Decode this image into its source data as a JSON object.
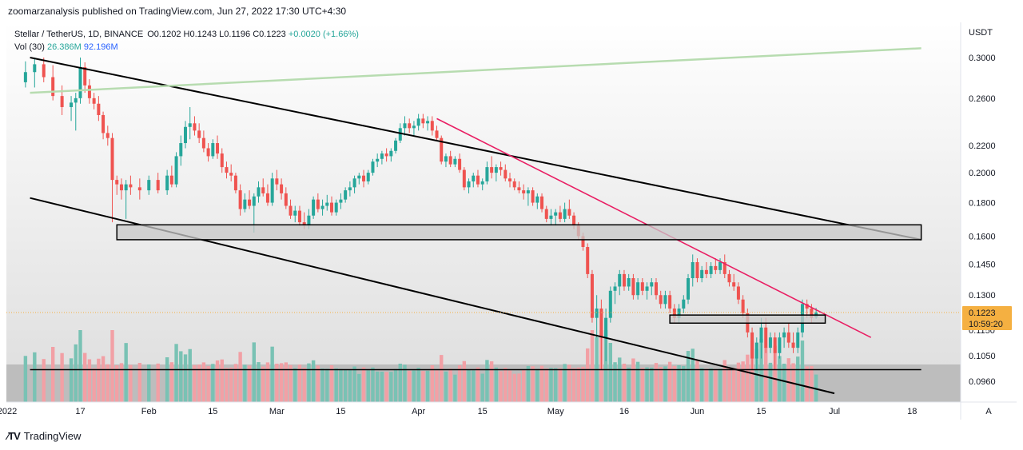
{
  "header": {
    "published": "zoomarzanalysis published on TradingView.com, Jun 27, 2022 17:30 UTC+4:30"
  },
  "legend": {
    "title": "Stellar / TetherUS, 1D, BINANCE",
    "open": "O0.1202",
    "high": "H0.1243",
    "low": "L0.1196",
    "close": "C0.1223",
    "change": "+0.0020 (+1.66%)",
    "vol_label": "Vol (30)",
    "vol_value": "26.386M",
    "vol_ma": "92.196M"
  },
  "price_axis": {
    "currency": "USDT",
    "current_price": "0.1223",
    "countdown": "10:59:20",
    "auto_label": "A"
  },
  "brand": {
    "name": "TradingView"
  },
  "colors": {
    "up": "#26a69a",
    "down": "#ef5350",
    "vol_up": "#79c2b4",
    "vol_down": "#f2a0a5",
    "trend_black": "#000000",
    "trend_green": "#b7dcb0",
    "trend_red": "#e91e63",
    "zone_fill": "#c8c8c8",
    "price_label": "#f5b041",
    "vol_ma": "#2962ff"
  },
  "chart_data": {
    "type": "candlestick",
    "symbol": "Stellar / TetherUS",
    "interval": "1D",
    "exchange": "BINANCE",
    "scale": "log",
    "y_ticks": [
      0.3,
      0.26,
      0.22,
      0.2,
      0.18,
      0.16,
      0.145,
      0.13,
      0.115,
      0.105,
      0.096
    ],
    "y_tick_labels": [
      "0.3000",
      "0.2600",
      "0.2200",
      "0.2000",
      "0.1800",
      "0.1600",
      "0.1450",
      "0.1300",
      "0.1150",
      "0.1050",
      "0.0960"
    ],
    "x_ticks": [
      "2022",
      "17",
      "Feb",
      "15",
      "Mar",
      "15",
      "Apr",
      "15",
      "May",
      "16",
      "Jun",
      "15",
      "Jul",
      "18"
    ],
    "candles": [
      [
        "2022-01-05",
        0.275,
        0.296,
        0.27,
        0.285
      ],
      [
        "2022-01-07",
        0.285,
        0.3,
        0.27,
        0.293
      ],
      [
        "2022-01-09",
        0.293,
        0.3,
        0.275,
        0.28
      ],
      [
        "2022-01-11",
        0.28,
        0.292,
        0.258,
        0.262
      ],
      [
        "2022-01-13",
        0.262,
        0.272,
        0.245,
        0.252
      ],
      [
        "2022-01-15",
        0.252,
        0.262,
        0.24,
        0.256
      ],
      [
        "2022-01-16",
        0.256,
        0.265,
        0.232,
        0.26
      ],
      [
        "2022-01-17",
        0.26,
        0.3,
        0.255,
        0.29
      ],
      [
        "2022-01-18",
        0.29,
        0.295,
        0.265,
        0.272
      ],
      [
        "2022-01-19",
        0.272,
        0.278,
        0.255,
        0.26
      ],
      [
        "2022-01-20",
        0.26,
        0.265,
        0.25,
        0.255
      ],
      [
        "2022-01-21",
        0.255,
        0.262,
        0.24,
        0.245
      ],
      [
        "2022-01-22",
        0.245,
        0.248,
        0.225,
        0.23
      ],
      [
        "2022-01-23",
        0.23,
        0.236,
        0.22,
        0.226
      ],
      [
        "2022-01-24",
        0.226,
        0.23,
        0.168,
        0.195
      ],
      [
        "2022-01-25",
        0.195,
        0.198,
        0.185,
        0.192
      ],
      [
        "2022-01-26",
        0.192,
        0.196,
        0.182,
        0.188
      ],
      [
        "2022-01-27",
        0.188,
        0.195,
        0.17,
        0.192
      ],
      [
        "2022-01-28",
        0.192,
        0.198,
        0.185,
        0.19
      ],
      [
        "2022-01-30",
        0.19,
        0.196,
        0.182,
        0.188
      ],
      [
        "2022-02-01",
        0.188,
        0.198,
        0.185,
        0.195
      ],
      [
        "2022-02-03",
        0.195,
        0.2,
        0.186,
        0.188
      ],
      [
        "2022-02-05",
        0.188,
        0.202,
        0.185,
        0.198
      ],
      [
        "2022-02-06",
        0.198,
        0.205,
        0.19,
        0.192
      ],
      [
        "2022-02-07",
        0.192,
        0.215,
        0.19,
        0.212
      ],
      [
        "2022-02-08",
        0.212,
        0.228,
        0.205,
        0.222
      ],
      [
        "2022-02-09",
        0.222,
        0.24,
        0.218,
        0.235
      ],
      [
        "2022-02-10",
        0.235,
        0.252,
        0.225,
        0.238
      ],
      [
        "2022-02-11",
        0.238,
        0.244,
        0.228,
        0.232
      ],
      [
        "2022-02-12",
        0.232,
        0.238,
        0.222,
        0.226
      ],
      [
        "2022-02-13",
        0.226,
        0.232,
        0.215,
        0.218
      ],
      [
        "2022-02-14",
        0.218,
        0.222,
        0.208,
        0.212
      ],
      [
        "2022-02-15",
        0.212,
        0.225,
        0.21,
        0.222
      ],
      [
        "2022-02-16",
        0.222,
        0.228,
        0.21,
        0.214
      ],
      [
        "2022-02-17",
        0.214,
        0.218,
        0.2,
        0.204
      ],
      [
        "2022-02-18",
        0.204,
        0.208,
        0.196,
        0.2
      ],
      [
        "2022-02-19",
        0.2,
        0.206,
        0.194,
        0.198
      ],
      [
        "2022-02-20",
        0.198,
        0.2,
        0.186,
        0.188
      ],
      [
        "2022-02-21",
        0.188,
        0.192,
        0.172,
        0.176
      ],
      [
        "2022-02-22",
        0.176,
        0.186,
        0.174,
        0.182
      ],
      [
        "2022-02-23",
        0.182,
        0.188,
        0.176,
        0.178
      ],
      [
        "2022-02-24",
        0.178,
        0.186,
        0.162,
        0.184
      ],
      [
        "2022-02-25",
        0.184,
        0.194,
        0.18,
        0.19
      ],
      [
        "2022-02-26",
        0.19,
        0.196,
        0.184,
        0.186
      ],
      [
        "2022-02-27",
        0.186,
        0.192,
        0.178,
        0.18
      ],
      [
        "2022-02-28",
        0.18,
        0.2,
        0.178,
        0.196
      ],
      [
        "2022-03-01",
        0.196,
        0.202,
        0.188,
        0.192
      ],
      [
        "2022-03-02",
        0.192,
        0.196,
        0.182,
        0.186
      ],
      [
        "2022-03-03",
        0.186,
        0.19,
        0.176,
        0.178
      ],
      [
        "2022-03-04",
        0.178,
        0.182,
        0.17,
        0.172
      ],
      [
        "2022-03-05",
        0.172,
        0.178,
        0.168,
        0.175
      ],
      [
        "2022-03-06",
        0.175,
        0.178,
        0.166,
        0.168
      ],
      [
        "2022-03-07",
        0.168,
        0.174,
        0.164,
        0.166
      ],
      [
        "2022-03-08",
        0.166,
        0.176,
        0.164,
        0.172
      ],
      [
        "2022-03-09",
        0.172,
        0.184,
        0.17,
        0.182
      ],
      [
        "2022-03-10",
        0.182,
        0.186,
        0.174,
        0.176
      ],
      [
        "2022-03-11",
        0.176,
        0.182,
        0.172,
        0.178
      ],
      [
        "2022-03-12",
        0.178,
        0.185,
        0.175,
        0.18
      ],
      [
        "2022-03-13",
        0.18,
        0.184,
        0.172,
        0.174
      ],
      [
        "2022-03-14",
        0.174,
        0.182,
        0.172,
        0.18
      ],
      [
        "2022-03-15",
        0.18,
        0.186,
        0.176,
        0.182
      ],
      [
        "2022-03-16",
        0.182,
        0.19,
        0.18,
        0.188
      ],
      [
        "2022-03-17",
        0.188,
        0.194,
        0.184,
        0.19
      ],
      [
        "2022-03-18",
        0.19,
        0.198,
        0.186,
        0.196
      ],
      [
        "2022-03-19",
        0.196,
        0.2,
        0.192,
        0.198
      ],
      [
        "2022-03-20",
        0.198,
        0.202,
        0.19,
        0.194
      ],
      [
        "2022-03-21",
        0.194,
        0.202,
        0.192,
        0.2
      ],
      [
        "2022-03-22",
        0.2,
        0.21,
        0.198,
        0.208
      ],
      [
        "2022-03-23",
        0.208,
        0.214,
        0.204,
        0.21
      ],
      [
        "2022-03-24",
        0.21,
        0.216,
        0.206,
        0.214
      ],
      [
        "2022-03-25",
        0.214,
        0.218,
        0.208,
        0.212
      ],
      [
        "2022-03-26",
        0.212,
        0.218,
        0.208,
        0.216
      ],
      [
        "2022-03-27",
        0.216,
        0.226,
        0.214,
        0.224
      ],
      [
        "2022-03-28",
        0.224,
        0.238,
        0.222,
        0.234
      ],
      [
        "2022-03-29",
        0.234,
        0.244,
        0.228,
        0.238
      ],
      [
        "2022-03-30",
        0.238,
        0.242,
        0.23,
        0.234
      ],
      [
        "2022-03-31",
        0.234,
        0.24,
        0.228,
        0.236
      ],
      [
        "2022-04-01",
        0.236,
        0.246,
        0.232,
        0.242
      ],
      [
        "2022-04-02",
        0.242,
        0.246,
        0.234,
        0.238
      ],
      [
        "2022-04-03",
        0.238,
        0.244,
        0.232,
        0.24
      ],
      [
        "2022-04-04",
        0.24,
        0.244,
        0.228,
        0.232
      ],
      [
        "2022-04-05",
        0.232,
        0.236,
        0.224,
        0.226
      ],
      [
        "2022-04-06",
        0.226,
        0.228,
        0.206,
        0.208
      ],
      [
        "2022-04-07",
        0.208,
        0.214,
        0.204,
        0.212
      ],
      [
        "2022-04-08",
        0.212,
        0.216,
        0.204,
        0.206
      ],
      [
        "2022-04-09",
        0.206,
        0.212,
        0.204,
        0.21
      ],
      [
        "2022-04-10",
        0.21,
        0.214,
        0.2,
        0.202
      ],
      [
        "2022-04-11",
        0.202,
        0.204,
        0.188,
        0.19
      ],
      [
        "2022-04-12",
        0.19,
        0.196,
        0.186,
        0.194
      ],
      [
        "2022-04-13",
        0.194,
        0.2,
        0.19,
        0.198
      ],
      [
        "2022-04-14",
        0.198,
        0.202,
        0.19,
        0.192
      ],
      [
        "2022-04-15",
        0.192,
        0.196,
        0.188,
        0.194
      ],
      [
        "2022-04-16",
        0.194,
        0.208,
        0.192,
        0.204
      ],
      [
        "2022-04-17",
        0.204,
        0.212,
        0.196,
        0.2
      ],
      [
        "2022-04-18",
        0.2,
        0.206,
        0.194,
        0.204
      ],
      [
        "2022-04-19",
        0.204,
        0.208,
        0.198,
        0.202
      ],
      [
        "2022-04-20",
        0.202,
        0.206,
        0.194,
        0.196
      ],
      [
        "2022-04-21",
        0.196,
        0.2,
        0.19,
        0.194
      ],
      [
        "2022-04-22",
        0.194,
        0.196,
        0.188,
        0.19
      ],
      [
        "2022-04-23",
        0.19,
        0.194,
        0.186,
        0.188
      ],
      [
        "2022-04-24",
        0.188,
        0.192,
        0.182,
        0.186
      ],
      [
        "2022-04-25",
        0.186,
        0.19,
        0.178,
        0.188
      ],
      [
        "2022-04-26",
        0.188,
        0.19,
        0.178,
        0.18
      ],
      [
        "2022-04-27",
        0.18,
        0.186,
        0.176,
        0.184
      ],
      [
        "2022-04-28",
        0.184,
        0.186,
        0.174,
        0.176
      ],
      [
        "2022-04-29",
        0.176,
        0.178,
        0.168,
        0.17
      ],
      [
        "2022-04-30",
        0.17,
        0.176,
        0.166,
        0.172
      ],
      [
        "2022-05-01",
        0.172,
        0.176,
        0.166,
        0.174
      ],
      [
        "2022-05-02",
        0.174,
        0.178,
        0.168,
        0.17
      ],
      [
        "2022-05-03",
        0.17,
        0.18,
        0.168,
        0.176
      ],
      [
        "2022-05-04",
        0.176,
        0.182,
        0.17,
        0.172
      ],
      [
        "2022-05-05",
        0.172,
        0.174,
        0.164,
        0.166
      ],
      [
        "2022-05-06",
        0.166,
        0.168,
        0.158,
        0.16
      ],
      [
        "2022-05-07",
        0.16,
        0.162,
        0.152,
        0.154
      ],
      [
        "2022-05-08",
        0.154,
        0.156,
        0.138,
        0.14
      ],
      [
        "2022-05-09",
        0.14,
        0.142,
        0.118,
        0.12
      ],
      [
        "2022-05-10",
        0.12,
        0.13,
        0.112,
        0.124
      ],
      [
        "2022-05-11",
        0.124,
        0.128,
        0.1,
        0.112
      ],
      [
        "2022-05-12",
        0.112,
        0.124,
        0.103,
        0.12
      ],
      [
        "2022-05-13",
        0.12,
        0.134,
        0.118,
        0.132
      ],
      [
        "2022-05-14",
        0.132,
        0.136,
        0.126,
        0.134
      ],
      [
        "2022-05-15",
        0.134,
        0.142,
        0.13,
        0.14
      ],
      [
        "2022-05-16",
        0.14,
        0.142,
        0.132,
        0.134
      ],
      [
        "2022-05-17",
        0.134,
        0.14,
        0.132,
        0.138
      ],
      [
        "2022-05-18",
        0.138,
        0.14,
        0.128,
        0.13
      ],
      [
        "2022-05-19",
        0.13,
        0.138,
        0.128,
        0.136
      ],
      [
        "2022-05-20",
        0.136,
        0.138,
        0.13,
        0.132
      ],
      [
        "2022-05-21",
        0.132,
        0.136,
        0.128,
        0.134
      ],
      [
        "2022-05-22",
        0.134,
        0.138,
        0.13,
        0.136
      ],
      [
        "2022-05-23",
        0.136,
        0.138,
        0.128,
        0.13
      ],
      [
        "2022-05-24",
        0.13,
        0.132,
        0.124,
        0.126
      ],
      [
        "2022-05-25",
        0.126,
        0.132,
        0.124,
        0.13
      ],
      [
        "2022-05-26",
        0.13,
        0.132,
        0.122,
        0.124
      ],
      [
        "2022-05-27",
        0.124,
        0.126,
        0.118,
        0.12
      ],
      [
        "2022-05-28",
        0.12,
        0.126,
        0.118,
        0.124
      ],
      [
        "2022-05-29",
        0.124,
        0.13,
        0.122,
        0.128
      ],
      [
        "2022-05-30",
        0.128,
        0.14,
        0.126,
        0.138
      ],
      [
        "2022-05-31",
        0.138,
        0.15,
        0.134,
        0.146
      ],
      [
        "2022-06-01",
        0.146,
        0.148,
        0.136,
        0.138
      ],
      [
        "2022-06-02",
        0.138,
        0.144,
        0.136,
        0.142
      ],
      [
        "2022-06-03",
        0.142,
        0.146,
        0.138,
        0.14
      ],
      [
        "2022-06-04",
        0.14,
        0.146,
        0.138,
        0.144
      ],
      [
        "2022-06-05",
        0.144,
        0.148,
        0.14,
        0.142
      ],
      [
        "2022-06-06",
        0.142,
        0.148,
        0.14,
        0.146
      ],
      [
        "2022-06-07",
        0.146,
        0.15,
        0.138,
        0.14
      ],
      [
        "2022-06-08",
        0.14,
        0.142,
        0.134,
        0.136
      ],
      [
        "2022-06-09",
        0.136,
        0.14,
        0.132,
        0.134
      ],
      [
        "2022-06-10",
        0.134,
        0.136,
        0.126,
        0.128
      ],
      [
        "2022-06-11",
        0.128,
        0.13,
        0.12,
        0.122
      ],
      [
        "2022-06-12",
        0.122,
        0.124,
        0.112,
        0.114
      ],
      [
        "2022-06-13",
        0.114,
        0.116,
        0.1,
        0.104
      ],
      [
        "2022-06-14",
        0.104,
        0.112,
        0.1,
        0.11
      ],
      [
        "2022-06-15",
        0.11,
        0.12,
        0.104,
        0.116
      ],
      [
        "2022-06-16",
        0.116,
        0.12,
        0.106,
        0.108
      ],
      [
        "2022-06-17",
        0.108,
        0.114,
        0.106,
        0.112
      ],
      [
        "2022-06-18",
        0.112,
        0.114,
        0.1,
        0.106
      ],
      [
        "2022-06-19",
        0.106,
        0.114,
        0.104,
        0.112
      ],
      [
        "2022-06-20",
        0.112,
        0.116,
        0.108,
        0.114
      ],
      [
        "2022-06-21",
        0.114,
        0.118,
        0.108,
        0.11
      ],
      [
        "2022-06-22",
        0.11,
        0.114,
        0.106,
        0.108
      ],
      [
        "2022-06-23",
        0.108,
        0.116,
        0.106,
        0.114
      ],
      [
        "2022-06-24",
        0.114,
        0.128,
        0.112,
        0.126
      ],
      [
        "2022-06-25",
        0.126,
        0.128,
        0.12,
        0.124
      ],
      [
        "2022-06-26",
        0.124,
        0.126,
        0.118,
        0.12
      ],
      [
        "2022-06-27",
        0.1202,
        0.1243,
        0.1196,
        0.1223
      ]
    ],
    "volume_series": {
      "name": "Vol (30)",
      "last": "26.386M",
      "ma": "92.196M"
    },
    "drawings": [
      {
        "kind": "trendline",
        "color": "black",
        "from": [
          "2022-01-06",
          0.3
        ],
        "to": [
          "2022-07-20",
          0.158
        ]
      },
      {
        "kind": "trendline",
        "color": "black",
        "from": [
          "2022-01-06",
          0.183
        ],
        "to": [
          "2022-07-01",
          0.092
        ]
      },
      {
        "kind": "trendline",
        "color": "green",
        "from": [
          "2022-01-06",
          0.265
        ],
        "to": [
          "2022-07-20",
          0.31
        ]
      },
      {
        "kind": "trendline",
        "color": "red",
        "from": [
          "2022-04-05",
          0.242
        ],
        "to": [
          "2022-07-09",
          0.112
        ]
      },
      {
        "kind": "zone",
        "from": [
          "2022-01-25",
          0.1665
        ],
        "to": [
          "2022-07-20",
          0.158
        ]
      },
      {
        "kind": "zone",
        "from": [
          "2022-05-26",
          0.1212
        ],
        "to": [
          "2022-06-29",
          0.1178
        ]
      },
      {
        "kind": "zone",
        "from": [
          "2022-01-06",
          0.1
        ],
        "to": [
          "2022-07-20",
          0.1
        ]
      }
    ]
  }
}
